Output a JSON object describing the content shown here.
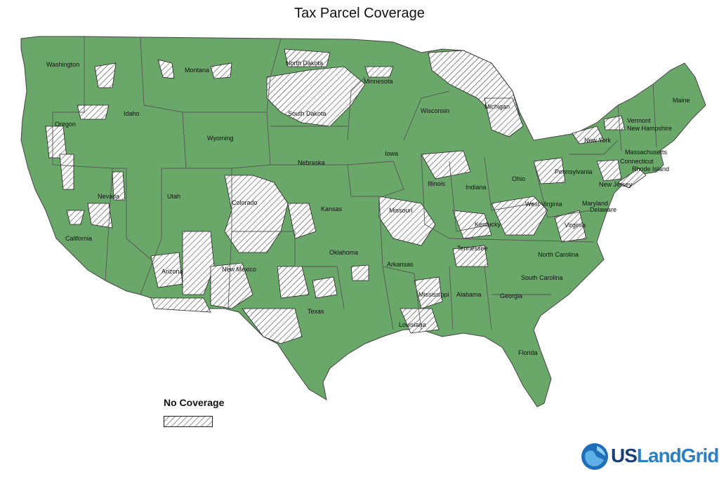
{
  "title": "Tax Parcel Coverage",
  "legend": {
    "label": "No Coverage",
    "swatch_pattern": "diagonal-hatch"
  },
  "logo": {
    "prefix": "US",
    "suffix": "LandGrid",
    "icon": "globe-icon"
  },
  "colors": {
    "coverage": "#6aa86a",
    "no_coverage_fill": "#ffffff",
    "hatch": "#333333",
    "borders": "#555555",
    "logo_dark": "#1a3f7a",
    "logo_light": "#2b7fc4"
  },
  "states": [
    {
      "name": "Washington"
    },
    {
      "name": "Montana"
    },
    {
      "name": "North Dakota"
    },
    {
      "name": "Minnesota"
    },
    {
      "name": "Idaho"
    },
    {
      "name": "Oregon"
    },
    {
      "name": "South Dakota"
    },
    {
      "name": "Wisconsin"
    },
    {
      "name": "Michigan"
    },
    {
      "name": "Wyoming"
    },
    {
      "name": "Maine"
    },
    {
      "name": "Vermont"
    },
    {
      "name": "New Hampshire"
    },
    {
      "name": "New York"
    },
    {
      "name": "Massachusetts"
    },
    {
      "name": "Connecticut"
    },
    {
      "name": "Rhode Island"
    },
    {
      "name": "Iowa"
    },
    {
      "name": "Nebraska"
    },
    {
      "name": "Pennsylvania"
    },
    {
      "name": "Nevada"
    },
    {
      "name": "Utah"
    },
    {
      "name": "Illinois"
    },
    {
      "name": "Indiana"
    },
    {
      "name": "Ohio"
    },
    {
      "name": "New Jersey"
    },
    {
      "name": "Colorado"
    },
    {
      "name": "Kansas"
    },
    {
      "name": "Missouri"
    },
    {
      "name": "West Virginia"
    },
    {
      "name": "Maryland"
    },
    {
      "name": "Delaware"
    },
    {
      "name": "California"
    },
    {
      "name": "Kentucky"
    },
    {
      "name": "Virginia"
    },
    {
      "name": "Tennessee"
    },
    {
      "name": "North Carolina"
    },
    {
      "name": "Oklahoma"
    },
    {
      "name": "Arizona"
    },
    {
      "name": "New Mexico"
    },
    {
      "name": "Arkansas"
    },
    {
      "name": "South Carolina"
    },
    {
      "name": "Mississippi"
    },
    {
      "name": "Alabama"
    },
    {
      "name": "Georgia"
    },
    {
      "name": "Texas"
    },
    {
      "name": "Louisiana"
    },
    {
      "name": "Florida"
    }
  ]
}
